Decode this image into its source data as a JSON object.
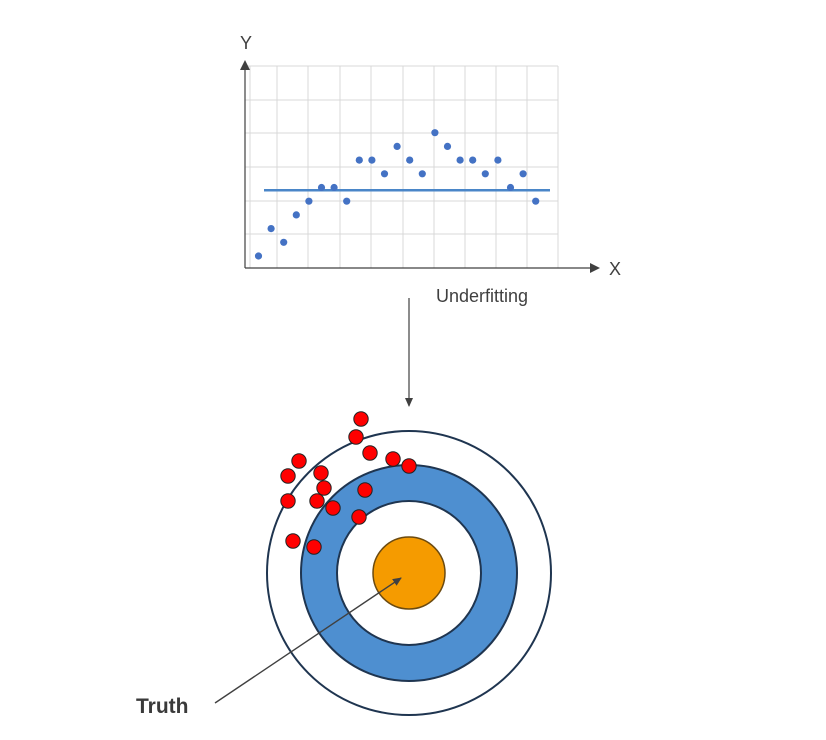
{
  "scatter_plot": {
    "y_axis_label": "Y",
    "x_axis_label": "X",
    "caption": "Underfitting",
    "point_color": "#4472c4",
    "fit_line_color": "#4a86c8",
    "points": [
      {
        "x": 1,
        "y": 1.0
      },
      {
        "x": 2,
        "y": 3.0
      },
      {
        "x": 3,
        "y": 2.0
      },
      {
        "x": 4,
        "y": 4.0
      },
      {
        "x": 5,
        "y": 5.0
      },
      {
        "x": 6,
        "y": 6.0
      },
      {
        "x": 7,
        "y": 6.0
      },
      {
        "x": 8,
        "y": 5.0
      },
      {
        "x": 9,
        "y": 8.0
      },
      {
        "x": 10,
        "y": 8.0
      },
      {
        "x": 11,
        "y": 7.0
      },
      {
        "x": 12,
        "y": 9.0
      },
      {
        "x": 13,
        "y": 8.0
      },
      {
        "x": 14,
        "y": 7.0
      },
      {
        "x": 15,
        "y": 10.0
      },
      {
        "x": 16,
        "y": 9.0
      },
      {
        "x": 17,
        "y": 8.0
      },
      {
        "x": 18,
        "y": 8.0
      },
      {
        "x": 19,
        "y": 7.0
      },
      {
        "x": 20,
        "y": 8.0
      },
      {
        "x": 21,
        "y": 6.0
      },
      {
        "x": 22,
        "y": 7.0
      },
      {
        "x": 23,
        "y": 5.0
      }
    ],
    "fit_line_y": 5.8
  },
  "target": {
    "label": "Truth",
    "ring_colors": {
      "outer": "#ffffff",
      "blue": "#4e8fd0",
      "inner": "#ffffff",
      "bullseye": "#f59b00",
      "stroke": "#1f3550"
    },
    "hit_color": "#ff0000",
    "hit_count": 18
  }
}
